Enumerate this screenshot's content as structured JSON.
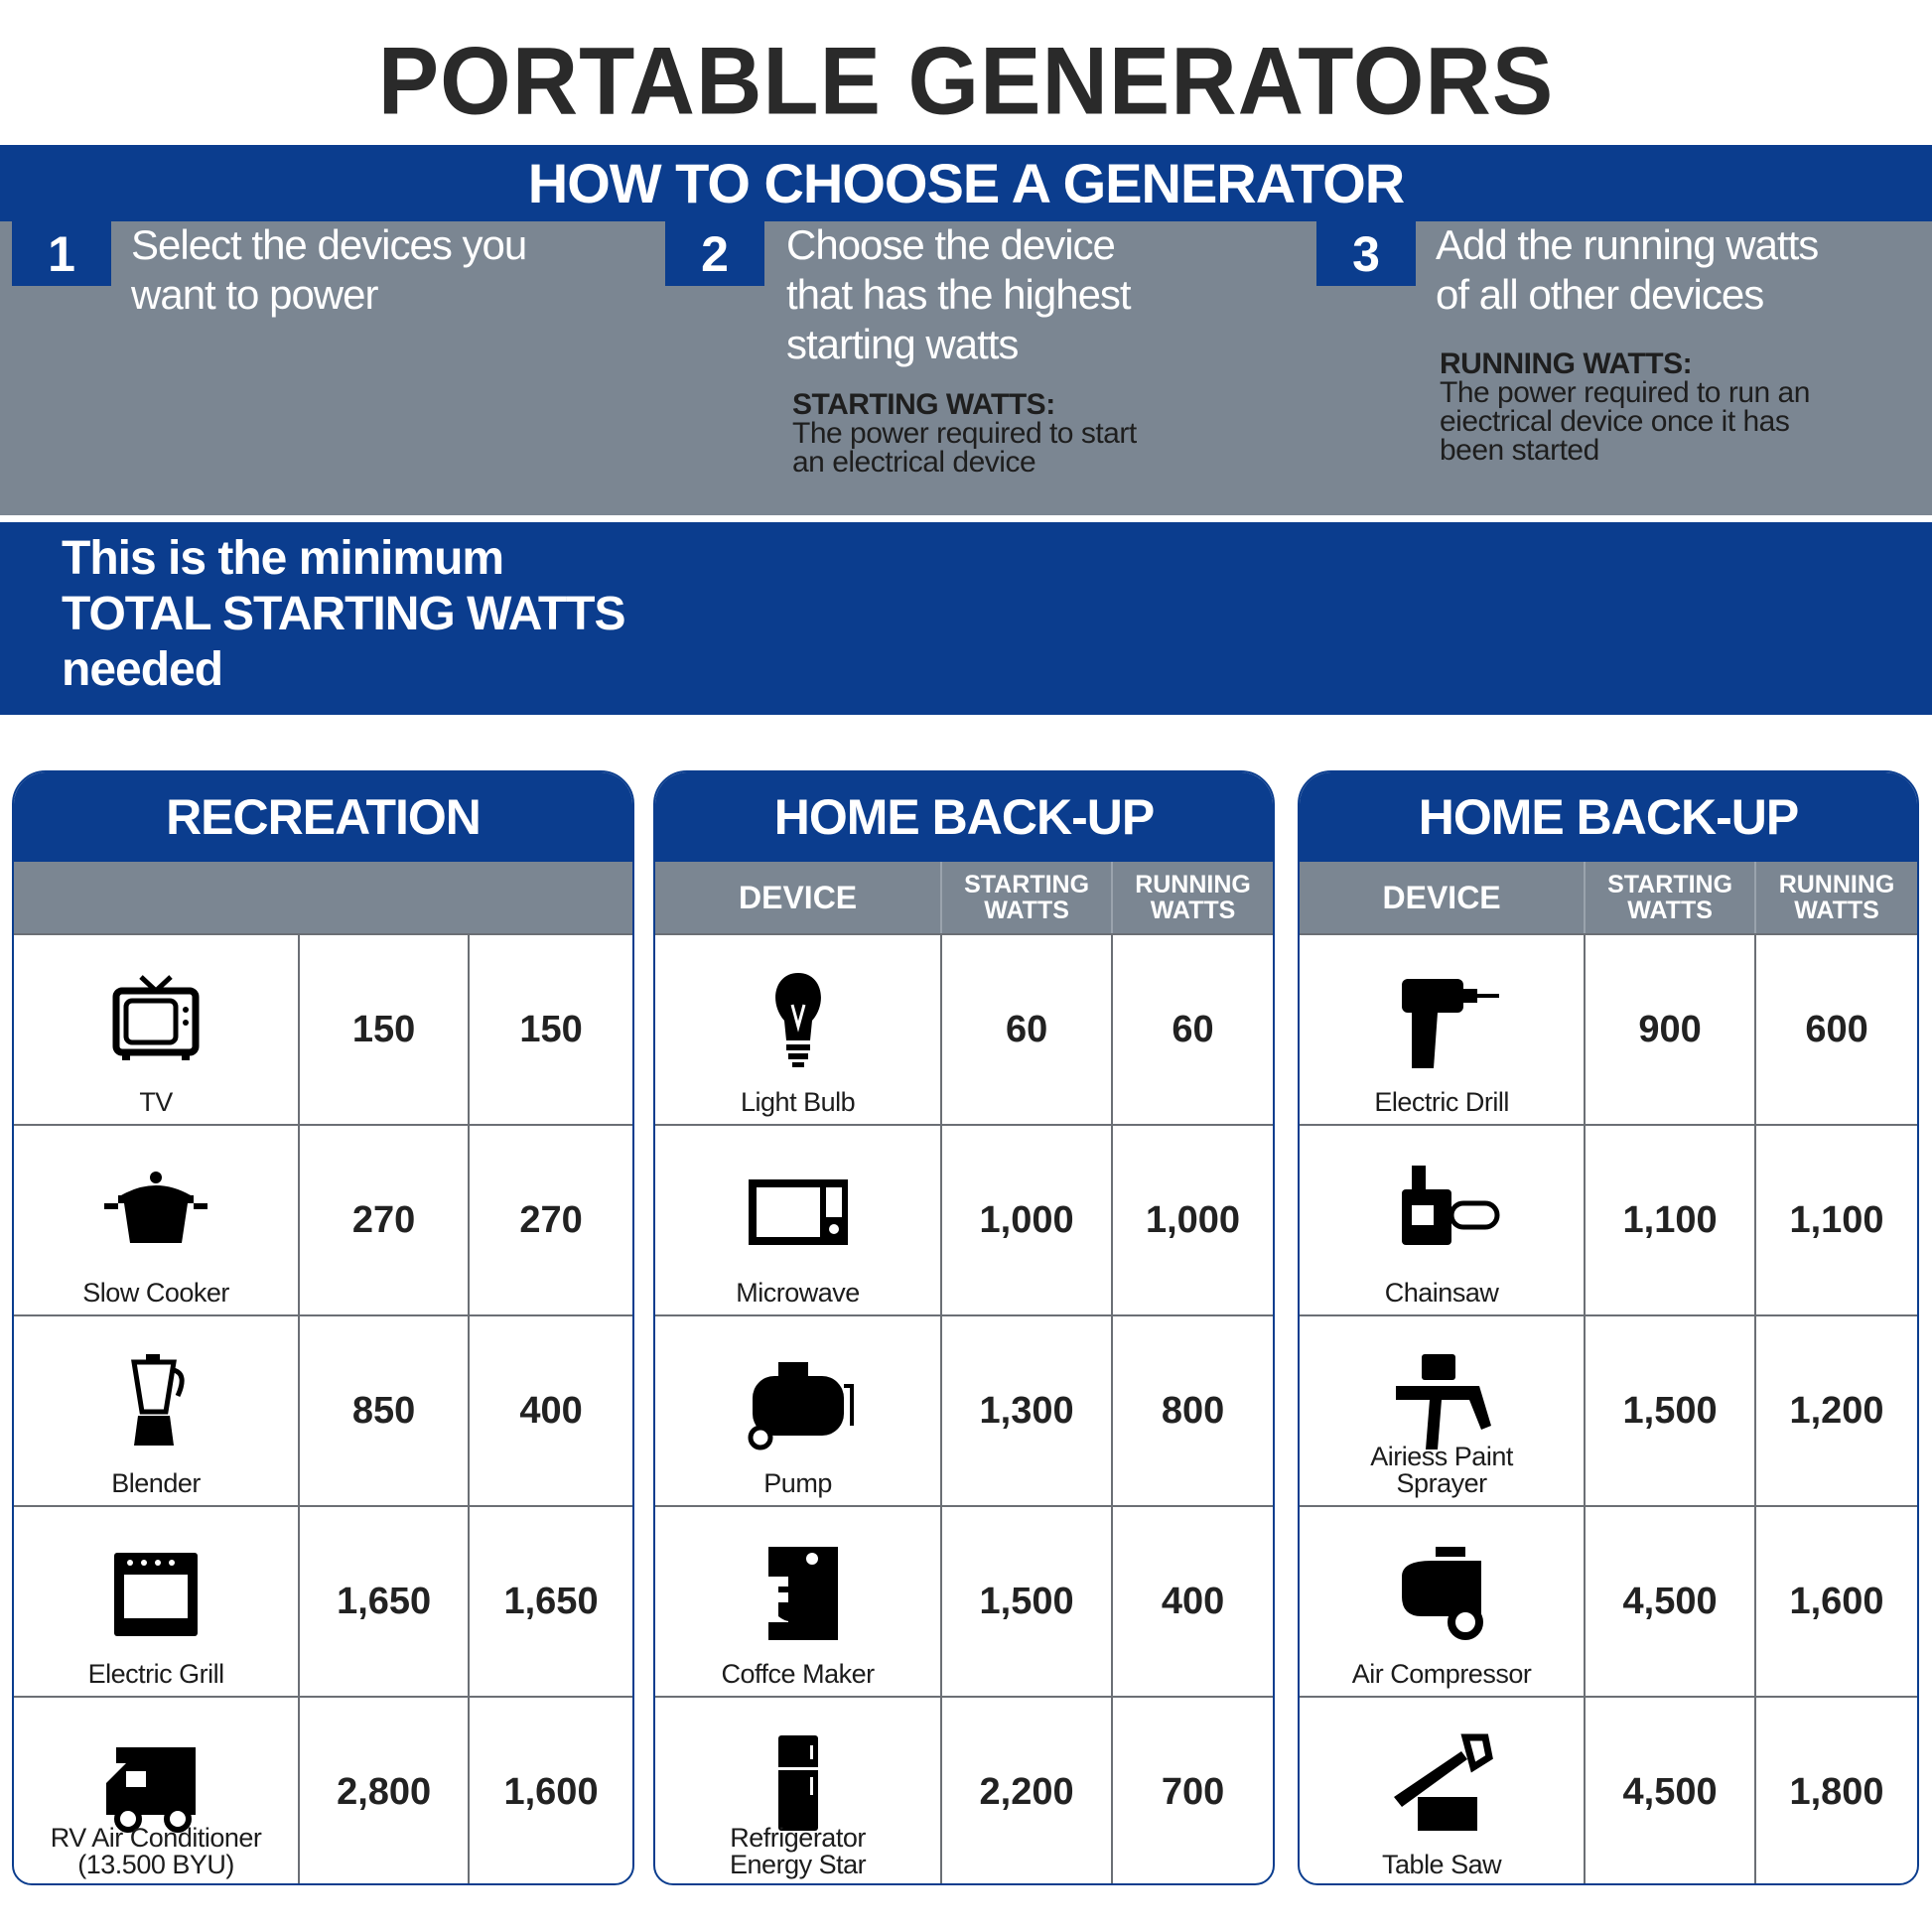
{
  "title": "PORTABLE GENERATORS",
  "how_to": {
    "heading": "HOW TO CHOOSE A GENERATOR",
    "steps": [
      {
        "number": "1",
        "lines": [
          "Select the devices you",
          "want to power"
        ]
      },
      {
        "number": "2",
        "lines": [
          "Choose the device",
          "that has the highest",
          "starting watts"
        ]
      },
      {
        "number": "3",
        "lines": [
          "Add the running watts",
          "of all other devices"
        ]
      }
    ],
    "starting_def": {
      "term": "STARTING WATTS:",
      "lines": [
        "The power required to start",
        "an electrical device"
      ]
    },
    "running_def": {
      "term": "RUNNING WATTS:",
      "lines": [
        "The power required to run an",
        "eiectrical device once it has",
        "been started"
      ]
    }
  },
  "minimum": {
    "lines": [
      "This is the minimum",
      "TOTAL STARTING WATTS",
      "needed"
    ]
  },
  "colors": {
    "blue": "#0b3d8e",
    "gray": "#7b8692"
  },
  "tables": [
    {
      "title": "RECREATION",
      "headers": {
        "device": "",
        "starting": "",
        "running": ""
      },
      "rows": [
        {
          "device": "TV",
          "icon": "tv-icon",
          "starting": "150",
          "running": "150"
        },
        {
          "device": "Slow Cooker",
          "icon": "slow-cooker-icon",
          "starting": "270",
          "running": "270"
        },
        {
          "device": "Blender",
          "icon": "blender-icon",
          "starting": "850",
          "running": "400"
        },
        {
          "device": "Electric Grill",
          "icon": "electric-grill-icon",
          "starting": "1,650",
          "running": "1,650"
        },
        {
          "device": "RV Air Conditioner\n(13.500 BYU)",
          "icon": "rv-icon",
          "starting": "2,800",
          "running": "1,600"
        }
      ]
    },
    {
      "title": "HOME BACK-UP",
      "headers": {
        "device": "DEVICE",
        "starting": "STARTING\nWATTS",
        "running": "RUNNING\nWATTS"
      },
      "rows": [
        {
          "device": "Light Bulb",
          "icon": "light-bulb-icon",
          "starting": "60",
          "running": "60"
        },
        {
          "device": "Microwave",
          "icon": "microwave-icon",
          "starting": "1,000",
          "running": "1,000"
        },
        {
          "device": "Pump",
          "icon": "pump-icon",
          "starting": "1,300",
          "running": "800"
        },
        {
          "device": "Coffce Maker",
          "icon": "coffee-maker-icon",
          "starting": "1,500",
          "running": "400"
        },
        {
          "device": "Refrigerator\nEnergy Star",
          "icon": "refrigerator-icon",
          "starting": "2,200",
          "running": "700"
        }
      ]
    },
    {
      "title": "HOME BACK-UP",
      "headers": {
        "device": "DEVICE",
        "starting": "STARTING\nWATTS",
        "running": "RUNNING\nWATTS"
      },
      "rows": [
        {
          "device": "Electric Drill",
          "icon": "drill-icon",
          "starting": "900",
          "running": "600"
        },
        {
          "device": "Chainsaw",
          "icon": "chainsaw-icon",
          "starting": "1,100",
          "running": "1,100"
        },
        {
          "device": "Airiess Paint\nSprayer",
          "icon": "paint-sprayer-icon",
          "starting": "1,500",
          "running": "1,200"
        },
        {
          "device": "Air Compressor",
          "icon": "air-compressor-icon",
          "starting": "4,500",
          "running": "1,600"
        },
        {
          "device": "Table Saw",
          "icon": "table-saw-icon",
          "starting": "4,500",
          "running": "1,800"
        }
      ]
    }
  ]
}
